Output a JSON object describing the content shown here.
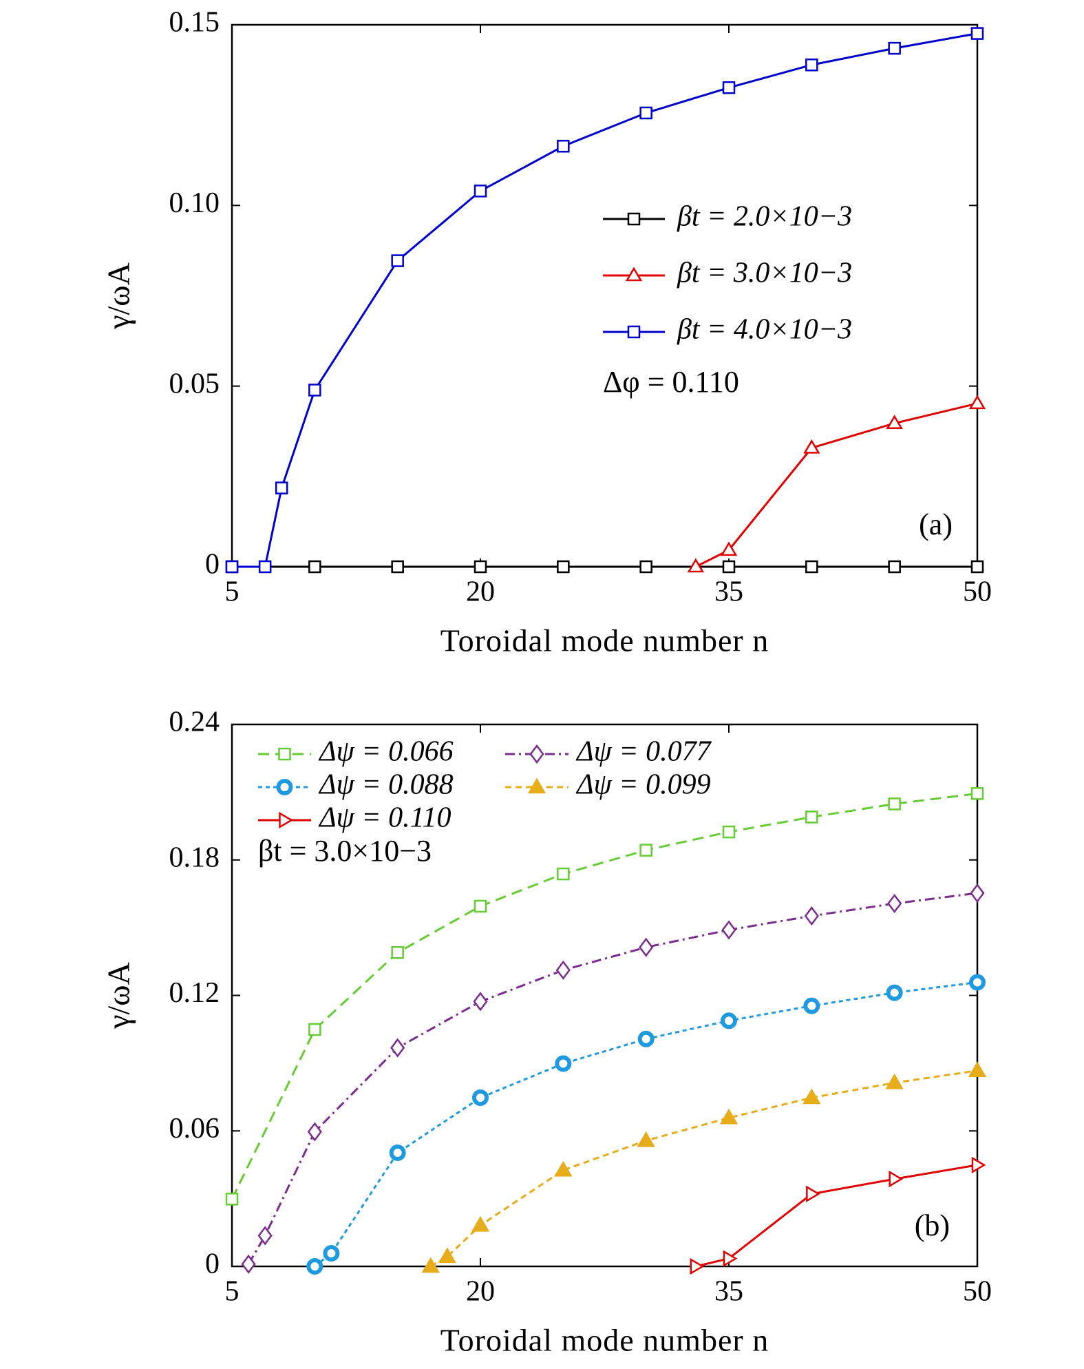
{
  "chart_data": [
    {
      "type": "line",
      "xlabel": "Toroidal mode number n",
      "ylabel": "γ/ωA",
      "xlim": [
        5,
        50
      ],
      "xticks": [
        5,
        20,
        35,
        50
      ],
      "ylim": [
        0,
        0.15
      ],
      "yticks": [
        0,
        0.05,
        {
          "value": 0.1,
          "label": "0.10"
        },
        0.15
      ],
      "legend": "upper right",
      "annotations": [
        "Δφ = 0.110",
        "(a)"
      ],
      "series": [
        {
          "name": "βt = 2.0×10−3",
          "color": "#000000",
          "marker": "square",
          "dash": "none",
          "x": [
            5,
            10,
            15,
            20,
            25,
            30,
            35,
            40,
            45,
            50
          ],
          "values": [
            0,
            0,
            0,
            0,
            0,
            0,
            0,
            0,
            0,
            0
          ]
        },
        {
          "name": "βt = 3.0×10−3",
          "color": "#e00000",
          "marker": "triangle",
          "dash": "none",
          "x": [
            33,
            35,
            40,
            45,
            50
          ],
          "values": [
            0,
            0.0046,
            0.0329,
            0.0397,
            0.0452
          ]
        },
        {
          "name": "βt = 4.0×10−3",
          "color": "#0000cc",
          "marker": "square",
          "dash": "none",
          "x": [
            5,
            7,
            8,
            10,
            15,
            20,
            25,
            30,
            35,
            40,
            45,
            50
          ],
          "values": [
            0,
            0,
            0.0218,
            0.0489,
            0.0847,
            0.104,
            0.1164,
            0.1256,
            0.1326,
            0.1389,
            0.1435,
            0.1476
          ]
        }
      ]
    },
    {
      "type": "line",
      "xlabel": "Toroidal mode number n",
      "ylabel": "γ/ωA",
      "xlim": [
        5,
        50
      ],
      "xticks": [
        5,
        20,
        35,
        50
      ],
      "ylim": [
        0,
        0.24
      ],
      "yticks": [
        0,
        0.06,
        0.12,
        0.18,
        0.24
      ],
      "legend": "upper left",
      "annotations": [
        "βt = 3.0×10−3",
        "(b)"
      ],
      "series": [
        {
          "name": "Δψ = 0.066",
          "color": "#66cc33",
          "marker": "square",
          "dash": "16 9",
          "x": [
            5,
            10,
            15,
            20,
            25,
            30,
            35,
            40,
            45,
            50
          ],
          "values": [
            0.0298,
            0.1049,
            0.139,
            0.1595,
            0.1738,
            0.1843,
            0.1924,
            0.199,
            0.2048,
            0.2094
          ]
        },
        {
          "name": "Δψ = 0.077",
          "color": "#7b2d8e",
          "marker": "diamond",
          "dash": "14 6 3 6",
          "x": [
            6,
            7,
            10,
            15,
            20,
            25,
            30,
            35,
            40,
            45,
            50
          ],
          "values": [
            0.001,
            0.0136,
            0.0596,
            0.0968,
            0.1173,
            0.1312,
            0.1413,
            0.149,
            0.1552,
            0.1607,
            0.1653
          ]
        },
        {
          "name": "Δψ = 0.088",
          "color": "#1f9ae0",
          "marker": "circle",
          "dash": "6 5",
          "x": [
            10,
            11,
            15,
            20,
            25,
            30,
            35,
            40,
            45,
            50
          ],
          "values": [
            0,
            0.0058,
            0.0503,
            0.0747,
            0.0898,
            0.1007,
            0.1088,
            0.1154,
            0.1212,
            0.1258
          ]
        },
        {
          "name": "Δψ = 0.099",
          "color": "#e6ac1a",
          "marker": "filled-triangle",
          "dash": "9 6",
          "x": [
            17,
            18,
            20,
            25,
            30,
            35,
            40,
            45,
            50
          ],
          "values": [
            0,
            0.0043,
            0.0182,
            0.0426,
            0.0557,
            0.0658,
            0.0747,
            0.0813,
            0.0867
          ]
        },
        {
          "name": "Δψ = 0.110",
          "color": "#e00000",
          "marker": "right-triangle",
          "dash": "none",
          "x": [
            33,
            35,
            40,
            45,
            50
          ],
          "values": [
            0,
            0.0035,
            0.0321,
            0.0387,
            0.0449
          ]
        }
      ]
    }
  ]
}
